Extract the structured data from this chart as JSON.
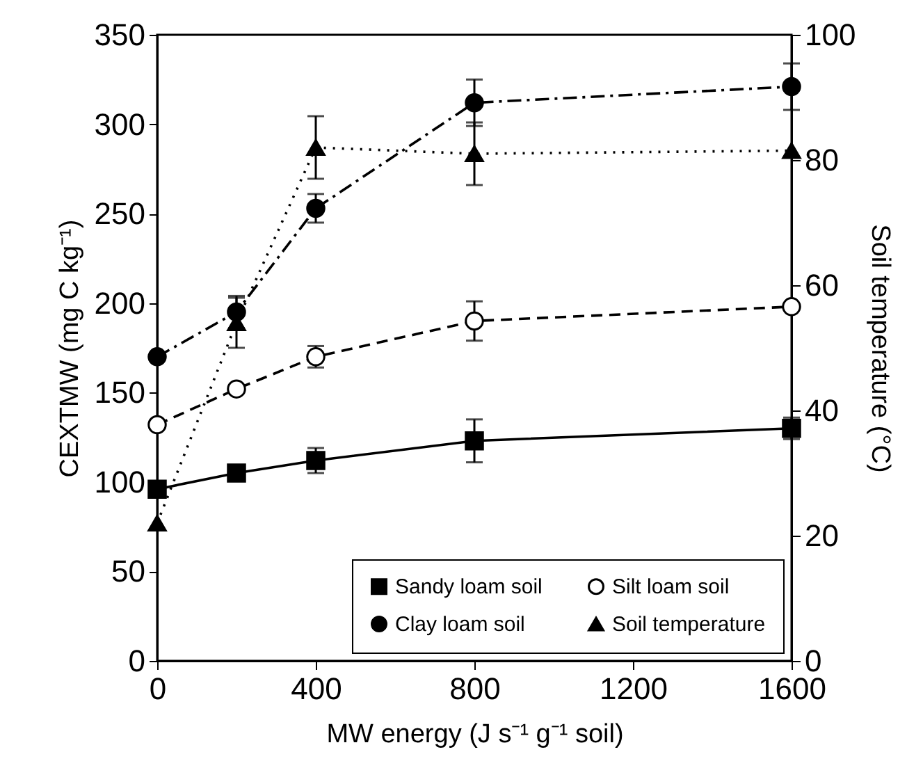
{
  "chart_data": {
    "type": "line",
    "xlabel": "MW energy (J s⁻¹ g⁻¹ soil)",
    "ylabel": "CEXTMW (mg C kg⁻¹)",
    "y2label": "Soil temperature (°C)",
    "x": [
      0,
      200,
      400,
      800,
      1600
    ],
    "xlim": [
      0,
      1600
    ],
    "xticks": [
      0,
      400,
      800,
      1200,
      1600
    ],
    "ylim": [
      0,
      350
    ],
    "yticks": [
      0,
      50,
      100,
      150,
      200,
      250,
      300,
      350
    ],
    "y2lim": [
      0,
      100
    ],
    "y2ticks": [
      0,
      20,
      40,
      60,
      80,
      100
    ],
    "legend": "bottom right",
    "series": [
      {
        "name": "Sandy loam soil",
        "color": "#000000",
        "marker": "square",
        "line_style": "solid",
        "values": [
          96,
          105,
          112,
          123,
          130
        ],
        "errors": [
          null,
          null,
          7,
          12,
          6
        ]
      },
      {
        "name": "Clay loam soil",
        "color": "#000000",
        "marker": "circle",
        "line_style": "dashdot",
        "values": [
          170,
          195,
          253,
          312,
          321
        ],
        "errors": [
          null,
          9,
          8,
          13,
          13
        ]
      },
      {
        "name": "Silt loam soil",
        "color": "#000000",
        "marker": "circle-open",
        "line_style": "dashed",
        "values": [
          132,
          152,
          170,
          190,
          198
        ],
        "errors": [
          null,
          null,
          6,
          11,
          null
        ]
      },
      {
        "name": "Soil temperature",
        "color": "#000000",
        "marker": "triangle",
        "line_style": "dotted",
        "axis": "y2",
        "values": [
          22,
          54,
          82,
          81,
          81.5
        ],
        "errors": [
          null,
          4,
          5,
          5,
          null
        ]
      }
    ]
  }
}
